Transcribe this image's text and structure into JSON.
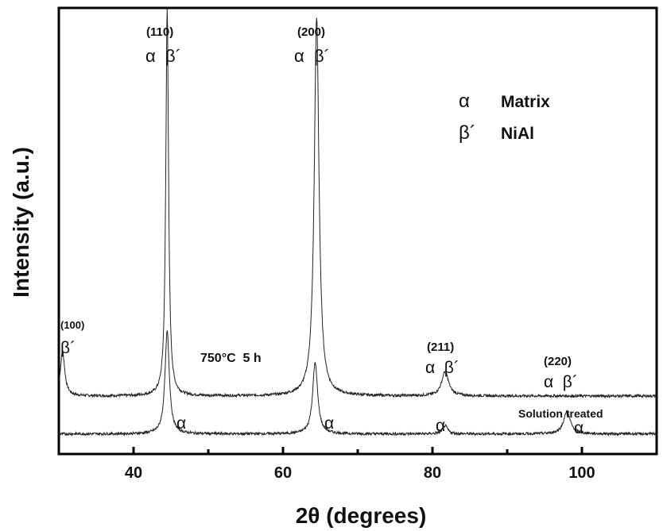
{
  "chart_data": {
    "type": "line",
    "xlabel": "2θ (degrees)",
    "ylabel": "Intensity (a.u.)",
    "xlim": [
      30,
      110
    ],
    "ylim": [
      0,
      1
    ],
    "x_ticks": [
      40,
      60,
      80,
      100
    ],
    "x_minor_ticks": [
      50,
      70,
      90
    ],
    "y_ticks": [],
    "grid": false,
    "legend_position": "top-right",
    "legend": [
      {
        "symbol": "α",
        "text": "Matrix"
      },
      {
        "symbol": "β´",
        "text": "NiAl"
      }
    ],
    "series": [
      {
        "name": "750°C 5 h",
        "baseline": 0.13,
        "peaks": [
          {
            "x": 30.5,
            "height": 0.1,
            "width": 0.35
          },
          {
            "x": 44.5,
            "height": 0.87,
            "width": 0.22
          },
          {
            "x": 64.5,
            "height": 0.85,
            "width": 0.38
          },
          {
            "x": 81.7,
            "height": 0.055,
            "width": 0.55
          },
          {
            "x": 98.0,
            "height": 0.0,
            "width": 0.5
          }
        ]
      },
      {
        "name": "Solution treated",
        "baseline": 0.045,
        "peaks": [
          {
            "x": 44.5,
            "height": 0.23,
            "width": 0.35
          },
          {
            "x": 64.3,
            "height": 0.16,
            "width": 0.4
          },
          {
            "x": 81.7,
            "height": 0.018,
            "width": 0.4
          },
          {
            "x": 98.0,
            "height": 0.05,
            "width": 0.55
          }
        ]
      }
    ],
    "annotations": [
      {
        "id": "hkl-100",
        "text": "(100)"
      },
      {
        "id": "beta-100",
        "text": "β´"
      },
      {
        "id": "hkl-110",
        "text": "(110)"
      },
      {
        "id": "ab-110",
        "text": "α  β´"
      },
      {
        "id": "hkl-200",
        "text": "(200)"
      },
      {
        "id": "ab-200",
        "text": "α  β´"
      },
      {
        "id": "hkl-211",
        "text": "(211)"
      },
      {
        "id": "ab-211",
        "text": "α  β´"
      },
      {
        "id": "hkl-220",
        "text": "(220)"
      },
      {
        "id": "ab-220",
        "text": "α  β´"
      },
      {
        "id": "alpha-44",
        "text": "α"
      },
      {
        "id": "alpha-64",
        "text": "α"
      },
      {
        "id": "alpha-81",
        "text": "α"
      },
      {
        "id": "alpha-98",
        "text": "α"
      }
    ],
    "series_labels": {
      "aged": "750°C  5 h",
      "solution": "Solution treated"
    }
  }
}
